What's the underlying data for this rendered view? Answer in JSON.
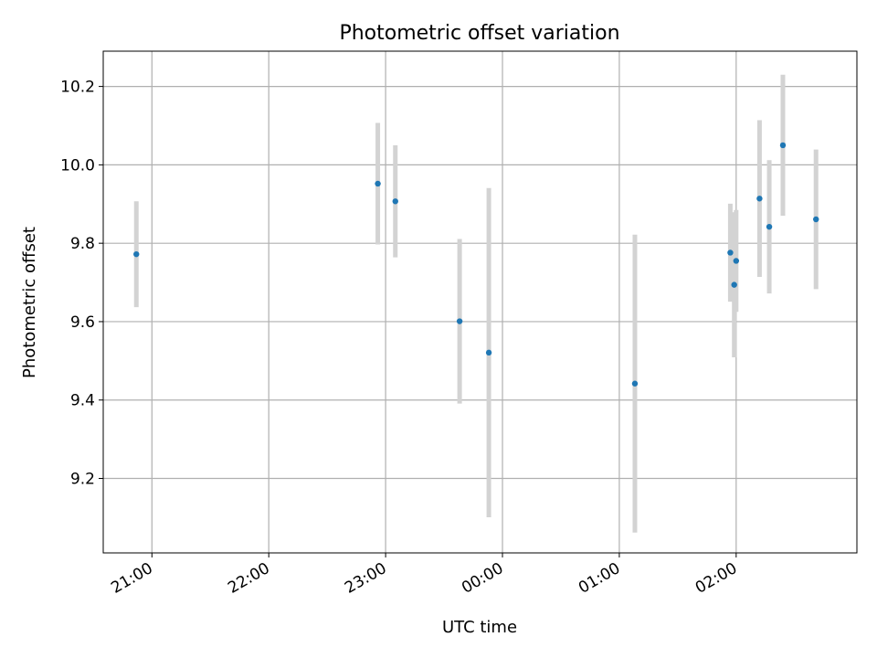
{
  "chart_data": {
    "type": "scatter",
    "title": "Photometric offset variation",
    "xlabel": "UTC time",
    "ylabel": "Photometric offset",
    "x_tick_labels": [
      "21:00",
      "22:00",
      "23:00",
      "00:00",
      "01:00",
      "02:00"
    ],
    "y_tick_labels": [
      "9.2",
      "9.4",
      "9.6",
      "9.8",
      "10.0",
      "10.2"
    ],
    "y_ticks": [
      9.2,
      9.4,
      9.6,
      9.8,
      10.0,
      10.2
    ],
    "xlim": [
      "20:35",
      "03:02"
    ],
    "ylim": [
      9.01,
      10.29
    ],
    "grid": true,
    "colors": {
      "point": "#1f77b4",
      "errorbar": "#d3d3d3",
      "grid": "#b0b0b0",
      "axes": "#000000"
    },
    "points": [
      {
        "time": "20:52",
        "y": 9.772,
        "err": 0.135
      },
      {
        "time": "22:56",
        "y": 9.952,
        "err": 0.155
      },
      {
        "time": "23:05",
        "y": 9.907,
        "err": 0.143
      },
      {
        "time": "23:38",
        "y": 9.601,
        "err": 0.21
      },
      {
        "time": "23:53",
        "y": 9.521,
        "err": 0.42
      },
      {
        "time": "01:08",
        "y": 9.442,
        "err": 0.38
      },
      {
        "time": "01:57",
        "y": 9.776,
        "err": 0.125
      },
      {
        "time": "01:59",
        "y": 9.694,
        "err": 0.185
      },
      {
        "time": "02:00",
        "y": 9.755,
        "err": 0.13
      },
      {
        "time": "02:12",
        "y": 9.914,
        "err": 0.2
      },
      {
        "time": "02:17",
        "y": 9.842,
        "err": 0.17
      },
      {
        "time": "02:24",
        "y": 10.05,
        "err": 0.18
      },
      {
        "time": "02:41",
        "y": 9.861,
        "err": 0.178
      }
    ]
  }
}
